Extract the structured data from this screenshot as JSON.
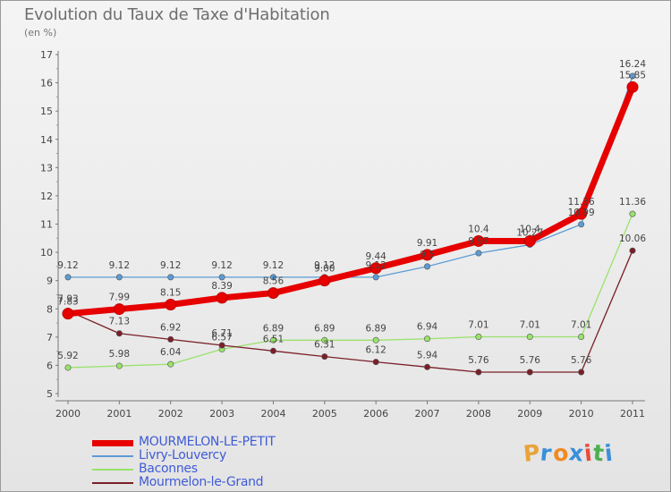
{
  "header": {
    "title": "Evolution du Taux de Taxe d'Habitation",
    "subtitle": "(en %)"
  },
  "logo": {
    "letters": [
      "P",
      "r",
      "o",
      "x",
      "i",
      "t",
      "i"
    ],
    "colors": [
      "#e8a33a",
      "#3b8fd9",
      "#f08a22",
      "#3b8fd9",
      "#e84c3d",
      "#4caf50",
      "#3b8fd9"
    ]
  },
  "chart_data": {
    "type": "line",
    "title": "Evolution du Taux de Taxe d'Habitation",
    "subtitle": "(en %)",
    "x": [
      "2000",
      "2001",
      "2002",
      "2003",
      "2004",
      "2005",
      "2006",
      "2007",
      "2008",
      "2009",
      "2010",
      "2011"
    ],
    "yticks": [
      "5",
      "6",
      "7",
      "8",
      "9",
      "10",
      "11",
      "12",
      "13",
      "14",
      "15",
      "16",
      "17"
    ],
    "ylim": [
      5,
      17
    ],
    "grid": false,
    "legend_position": "bottom-left",
    "series": [
      {
        "name": "MOURMELON-LE-PETIT",
        "color": "#e60000",
        "values": [
          7.83,
          7.99,
          8.15,
          8.39,
          8.56,
          9.0,
          9.44,
          9.91,
          10.4,
          10.4,
          11.36,
          15.85
        ],
        "labels": [
          "7.83",
          "7.99",
          "8.15",
          "8.39",
          "8.56",
          "9.00",
          "9.44",
          "9.91",
          "10.4",
          "10.4",
          "11.36",
          "15.85"
        ]
      },
      {
        "name": "Livry-Louvercy",
        "color": "#5b9bd5",
        "values": [
          9.12,
          9.12,
          9.12,
          9.12,
          9.12,
          9.12,
          9.12,
          9.5,
          9.97,
          10.27,
          10.99,
          16.24
        ],
        "labels": [
          "9.12",
          "9.12",
          "9.12",
          "9.12",
          "9.12",
          "9.12",
          "9.12",
          "9.5",
          "9.97",
          "10.27",
          "10.99",
          "16.24"
        ]
      },
      {
        "name": "Baconnes",
        "color": "#99e26b",
        "values": [
          5.92,
          5.98,
          6.04,
          6.57,
          6.89,
          6.89,
          6.89,
          6.94,
          7.01,
          7.01,
          7.01,
          11.36
        ],
        "labels": [
          "5.92",
          "5.98",
          "6.04",
          "6.57",
          "6.89",
          "6.89",
          "6.89",
          "6.94",
          "7.01",
          "7.01",
          "7.01",
          "11.36"
        ]
      },
      {
        "name": "Mourmelon-le-Grand",
        "color": "#7a1f28",
        "values": [
          7.93,
          7.13,
          6.92,
          6.71,
          6.51,
          6.31,
          6.12,
          5.94,
          5.76,
          5.76,
          5.76,
          10.06
        ],
        "labels": [
          "7.93",
          "7.13",
          "6.92",
          "6.71",
          "6.51",
          "6.31",
          "6.12",
          "5.94",
          "5.76",
          "5.76",
          "5.76",
          "10.06"
        ]
      }
    ]
  }
}
